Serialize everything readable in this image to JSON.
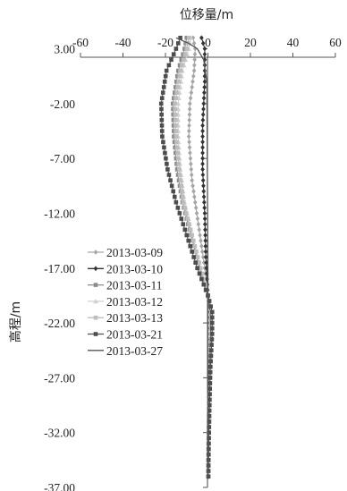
{
  "chart_data": {
    "type": "line",
    "title": "",
    "xlabel": "位移量/m",
    "ylabel": "高程/m",
    "xlim": [
      -60,
      60
    ],
    "ylim": [
      -37,
      5
    ],
    "x_ticks": [
      "-60",
      "-40",
      "-20",
      "0",
      "20",
      "40",
      "60"
    ],
    "y_ticks": [
      "3.00",
      "-2.00",
      "-7.00",
      "-12.00",
      "-17.00",
      "-22.00",
      "-27.00",
      "-32.00",
      "-37.00"
    ],
    "x_axis_position": "top",
    "grid": false,
    "legend_position": "left-middle",
    "depth": {
      "top": 4.0,
      "bottom": -36.0,
      "step": 0.5
    },
    "series": [
      {
        "name": "2013-03-09",
        "color": "#a6a6a6",
        "marker": "diamond",
        "profile": [
          [
            4.0,
            -7
          ],
          [
            3.0,
            -6
          ],
          [
            1.0,
            -6.5
          ],
          [
            -2.0,
            -8.5
          ],
          [
            -5.0,
            -9
          ],
          [
            -9.0,
            -7.5
          ],
          [
            -13.0,
            -4.5
          ],
          [
            -17.0,
            -1.5
          ],
          [
            -19.5,
            0
          ],
          [
            -21.0,
            1.5
          ],
          [
            -23.0,
            1.5
          ],
          [
            -26.0,
            0.8
          ],
          [
            -29.0,
            0.5
          ],
          [
            -33.0,
            0.3
          ],
          [
            -36.0,
            0.2
          ]
        ]
      },
      {
        "name": "2013-03-10",
        "color": "#333333",
        "marker": "diamond",
        "profile": [
          [
            4.0,
            -3
          ],
          [
            3.0,
            -1.5
          ],
          [
            0.0,
            -1.5
          ],
          [
            -4.0,
            -2.5
          ],
          [
            -8.0,
            -2.5
          ],
          [
            -12.0,
            -1.5
          ],
          [
            -16.0,
            -1
          ],
          [
            -19.5,
            0
          ],
          [
            -21.0,
            1
          ],
          [
            -23.0,
            1.2
          ],
          [
            -26.0,
            0.8
          ],
          [
            -29.0,
            0.5
          ],
          [
            -33.0,
            0.3
          ],
          [
            -36.0,
            0.2
          ]
        ]
      },
      {
        "name": "2013-03-11",
        "color": "#8c8c8c",
        "marker": "square",
        "profile": [
          [
            4.0,
            -10
          ],
          [
            3.0,
            -11
          ],
          [
            1.0,
            -14
          ],
          [
            -2.0,
            -16.5
          ],
          [
            -5.0,
            -16
          ],
          [
            -8.0,
            -14.5
          ],
          [
            -11.0,
            -12
          ],
          [
            -14.0,
            -8
          ],
          [
            -17.0,
            -4
          ],
          [
            -19.5,
            0
          ],
          [
            -21.0,
            1.5
          ],
          [
            -23.0,
            1.5
          ],
          [
            -26.0,
            1
          ],
          [
            -29.0,
            0.6
          ],
          [
            -33.0,
            0.3
          ],
          [
            -36.0,
            0.2
          ]
        ]
      },
      {
        "name": "2013-03-12",
        "color": "#d0d0d0",
        "marker": "triangle",
        "profile": [
          [
            4.0,
            -8
          ],
          [
            3.0,
            -9
          ],
          [
            1.0,
            -12
          ],
          [
            -2.0,
            -14
          ],
          [
            -5.0,
            -14
          ],
          [
            -8.0,
            -13
          ],
          [
            -11.0,
            -11
          ],
          [
            -14.0,
            -7.5
          ],
          [
            -17.0,
            -3.5
          ],
          [
            -19.5,
            0
          ],
          [
            -21.0,
            1.5
          ],
          [
            -23.0,
            1.5
          ],
          [
            -26.0,
            1
          ],
          [
            -29.0,
            0.6
          ],
          [
            -33.0,
            0.3
          ],
          [
            -36.0,
            0.2
          ]
        ]
      },
      {
        "name": "2013-03-13",
        "color": "#bdbdbd",
        "marker": "square",
        "profile": [
          [
            4.0,
            -9
          ],
          [
            3.0,
            -10
          ],
          [
            1.0,
            -13
          ],
          [
            -2.0,
            -15.5
          ],
          [
            -5.0,
            -15
          ],
          [
            -8.0,
            -13.5
          ],
          [
            -11.0,
            -11.5
          ],
          [
            -14.0,
            -7.5
          ],
          [
            -17.0,
            -3.5
          ],
          [
            -19.5,
            0
          ],
          [
            -21.0,
            1.5
          ],
          [
            -23.0,
            1.5
          ],
          [
            -26.0,
            1
          ],
          [
            -29.0,
            0.6
          ],
          [
            -33.0,
            0.3
          ],
          [
            -36.0,
            0.2
          ]
        ]
      },
      {
        "name": "2013-03-21",
        "color": "#4d4d4d",
        "marker": "square",
        "profile": [
          [
            4.0,
            -13
          ],
          [
            3.0,
            -15
          ],
          [
            1.0,
            -19.5
          ],
          [
            -2.0,
            -22
          ],
          [
            -5.0,
            -21.5
          ],
          [
            -8.0,
            -19
          ],
          [
            -11.0,
            -15
          ],
          [
            -14.0,
            -10
          ],
          [
            -17.0,
            -5
          ],
          [
            -19.5,
            0
          ],
          [
            -21.0,
            2
          ],
          [
            -23.0,
            2
          ],
          [
            -26.0,
            1.2
          ],
          [
            -29.0,
            0.8
          ],
          [
            -33.0,
            0.4
          ],
          [
            -36.0,
            0.2
          ]
        ]
      },
      {
        "name": "2013-03-27",
        "color": "#555555",
        "marker": "none",
        "profile": [
          [
            4.0,
            -15
          ],
          [
            3.5,
            -9
          ],
          [
            3.0,
            -5
          ],
          [
            2.0,
            -2
          ],
          [
            0.0,
            -0.5
          ],
          [
            -18.0,
            0
          ],
          [
            -36.0,
            0
          ]
        ]
      }
    ]
  }
}
